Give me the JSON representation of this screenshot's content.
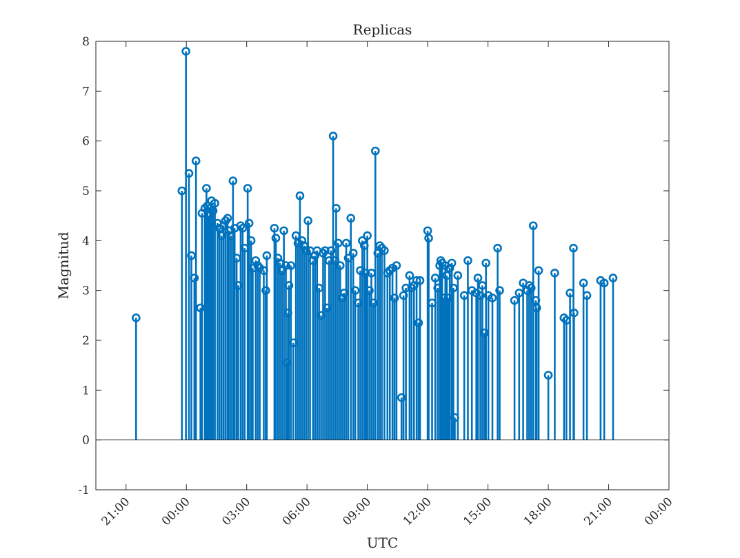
{
  "chart_data": {
    "type": "stem",
    "title": "Replicas",
    "xlabel": "UTC",
    "ylabel": "Magnitud",
    "ylim": [
      -1,
      8
    ],
    "yticks": [
      "-1",
      "0",
      "1",
      "2",
      "3",
      "4",
      "5",
      "6",
      "7",
      "8"
    ],
    "x_unit": "hours after 00:00",
    "xlim": [
      -4.5,
      24
    ],
    "xticks": [
      {
        "hour": -3,
        "label": "21:00"
      },
      {
        "hour": 0,
        "label": "00:00"
      },
      {
        "hour": 3,
        "label": "03:00"
      },
      {
        "hour": 6,
        "label": "06:00"
      },
      {
        "hour": 9,
        "label": "09:00"
      },
      {
        "hour": 12,
        "label": "12:00"
      },
      {
        "hour": 15,
        "label": "15:00"
      },
      {
        "hour": 18,
        "label": "18:00"
      },
      {
        "hour": 21,
        "label": "21:00"
      },
      {
        "hour": 24,
        "label": "00:00"
      }
    ],
    "baseline": 0,
    "grid": false,
    "color": "#0072BD",
    "series": [
      {
        "points": [
          [
            -2.5,
            2.45
          ],
          [
            -0.22,
            5.0
          ],
          [
            -0.02,
            7.8
          ],
          [
            0.13,
            5.35
          ],
          [
            0.25,
            3.7
          ],
          [
            0.4,
            3.25
          ],
          [
            0.48,
            5.6
          ],
          [
            0.7,
            2.65
          ],
          [
            0.78,
            4.55
          ],
          [
            0.92,
            4.65
          ],
          [
            1.0,
            5.05
          ],
          [
            1.05,
            4.7
          ],
          [
            1.12,
            4.5
          ],
          [
            1.18,
            4.65
          ],
          [
            1.25,
            4.8
          ],
          [
            1.33,
            4.6
          ],
          [
            1.42,
            4.75
          ],
          [
            1.55,
            4.35
          ],
          [
            1.65,
            4.25
          ],
          [
            1.75,
            4.1
          ],
          [
            1.85,
            4.3
          ],
          [
            1.95,
            4.4
          ],
          [
            2.05,
            4.45
          ],
          [
            2.12,
            4.2
          ],
          [
            2.22,
            4.1
          ],
          [
            2.32,
            5.2
          ],
          [
            2.4,
            4.25
          ],
          [
            2.5,
            3.65
          ],
          [
            2.58,
            3.1
          ],
          [
            2.7,
            4.3
          ],
          [
            2.8,
            4.25
          ],
          [
            2.9,
            3.85
          ],
          [
            3.05,
            5.05
          ],
          [
            3.12,
            4.35
          ],
          [
            3.22,
            4.0
          ],
          [
            3.3,
            3.45
          ],
          [
            3.45,
            3.6
          ],
          [
            3.55,
            3.5
          ],
          [
            3.65,
            3.45
          ],
          [
            3.85,
            3.4
          ],
          [
            3.95,
            3.0
          ],
          [
            4.0,
            3.7
          ],
          [
            4.38,
            4.25
          ],
          [
            4.45,
            4.05
          ],
          [
            4.55,
            3.65
          ],
          [
            4.65,
            3.55
          ],
          [
            4.75,
            3.4
          ],
          [
            4.85,
            4.2
          ],
          [
            4.95,
            3.5
          ],
          [
            5.0,
            1.55
          ],
          [
            5.05,
            2.55
          ],
          [
            5.1,
            3.1
          ],
          [
            5.2,
            3.5
          ],
          [
            5.32,
            1.95
          ],
          [
            5.45,
            4.1
          ],
          [
            5.55,
            3.95
          ],
          [
            5.65,
            4.9
          ],
          [
            5.75,
            4.0
          ],
          [
            5.85,
            3.9
          ],
          [
            5.95,
            3.8
          ],
          [
            6.05,
            4.4
          ],
          [
            6.15,
            3.8
          ],
          [
            6.3,
            3.6
          ],
          [
            6.4,
            3.7
          ],
          [
            6.5,
            3.8
          ],
          [
            6.6,
            3.05
          ],
          [
            6.7,
            2.5
          ],
          [
            6.8,
            3.75
          ],
          [
            6.9,
            3.8
          ],
          [
            7.0,
            2.65
          ],
          [
            7.1,
            3.6
          ],
          [
            7.2,
            3.8
          ],
          [
            7.3,
            6.1
          ],
          [
            7.4,
            3.6
          ],
          [
            7.45,
            4.65
          ],
          [
            7.55,
            3.95
          ],
          [
            7.65,
            3.5
          ],
          [
            7.75,
            2.85
          ],
          [
            7.85,
            2.95
          ],
          [
            7.95,
            3.95
          ],
          [
            8.05,
            3.65
          ],
          [
            8.18,
            4.45
          ],
          [
            8.3,
            3.75
          ],
          [
            8.4,
            3.0
          ],
          [
            8.55,
            2.75
          ],
          [
            8.65,
            3.4
          ],
          [
            8.75,
            4.0
          ],
          [
            8.85,
            3.9
          ],
          [
            8.92,
            3.35
          ],
          [
            9.0,
            4.1
          ],
          [
            9.1,
            3.0
          ],
          [
            9.2,
            3.35
          ],
          [
            9.3,
            2.75
          ],
          [
            9.4,
            5.8
          ],
          [
            9.52,
            3.75
          ],
          [
            9.62,
            3.9
          ],
          [
            9.72,
            3.85
          ],
          [
            9.85,
            3.8
          ],
          [
            10.0,
            3.35
          ],
          [
            10.12,
            3.4
          ],
          [
            10.25,
            3.45
          ],
          [
            10.35,
            2.85
          ],
          [
            10.45,
            3.5
          ],
          [
            10.7,
            0.85
          ],
          [
            10.8,
            2.9
          ],
          [
            10.92,
            3.05
          ],
          [
            11.1,
            3.3
          ],
          [
            11.2,
            3.05
          ],
          [
            11.32,
            3.1
          ],
          [
            11.45,
            3.2
          ],
          [
            11.55,
            2.35
          ],
          [
            11.62,
            3.2
          ],
          [
            12.0,
            4.2
          ],
          [
            12.05,
            4.05
          ],
          [
            12.22,
            2.75
          ],
          [
            12.38,
            3.25
          ],
          [
            12.5,
            3.05
          ],
          [
            12.6,
            3.5
          ],
          [
            12.65,
            3.6
          ],
          [
            12.72,
            3.55
          ],
          [
            12.8,
            2.85
          ],
          [
            12.88,
            3.5
          ],
          [
            12.95,
            3.3
          ],
          [
            13.02,
            2.85
          ],
          [
            13.1,
            3.45
          ],
          [
            13.2,
            3.55
          ],
          [
            13.28,
            3.05
          ],
          [
            13.35,
            0.45
          ],
          [
            13.5,
            3.3
          ],
          [
            13.82,
            2.9
          ],
          [
            14.0,
            3.6
          ],
          [
            14.2,
            3.0
          ],
          [
            14.42,
            2.95
          ],
          [
            14.5,
            3.25
          ],
          [
            14.62,
            2.9
          ],
          [
            14.72,
            3.1
          ],
          [
            14.82,
            2.15
          ],
          [
            14.9,
            3.55
          ],
          [
            15.02,
            2.9
          ],
          [
            15.22,
            2.85
          ],
          [
            15.48,
            3.85
          ],
          [
            15.58,
            3.0
          ],
          [
            16.32,
            2.8
          ],
          [
            16.55,
            2.95
          ],
          [
            16.75,
            3.15
          ],
          [
            16.95,
            3.0
          ],
          [
            17.05,
            3.1
          ],
          [
            17.15,
            3.05
          ],
          [
            17.25,
            4.3
          ],
          [
            17.38,
            2.8
          ],
          [
            17.42,
            2.65
          ],
          [
            17.52,
            3.4
          ],
          [
            18.0,
            1.3
          ],
          [
            18.32,
            3.35
          ],
          [
            18.78,
            2.45
          ],
          [
            18.9,
            2.4
          ],
          [
            19.08,
            2.95
          ],
          [
            19.25,
            3.85
          ],
          [
            19.28,
            2.55
          ],
          [
            19.75,
            3.15
          ],
          [
            19.92,
            2.9
          ],
          [
            20.6,
            3.2
          ],
          [
            20.78,
            3.15
          ],
          [
            21.22,
            3.25
          ]
        ]
      }
    ]
  }
}
